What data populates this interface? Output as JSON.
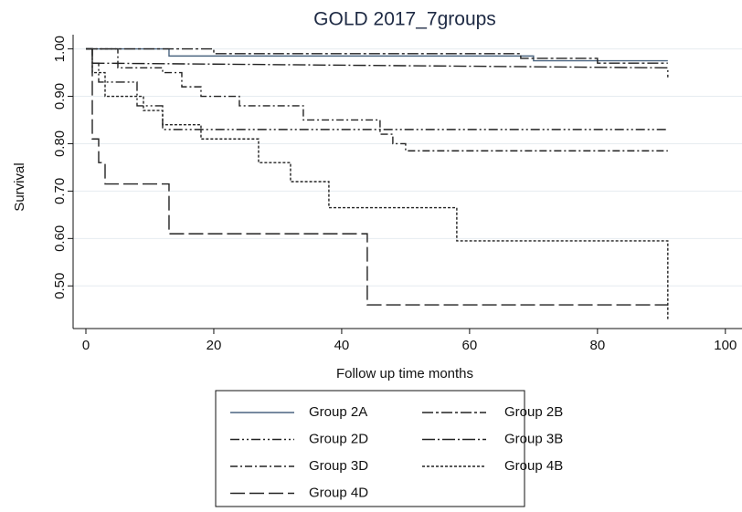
{
  "chart_data": {
    "type": "line",
    "title": "GOLD 2017_7groups",
    "x_label": "Follow up time months",
    "y_label": "Survival",
    "xlim": [
      -2,
      102.6
    ],
    "ylim": [
      0.41,
      1.03
    ],
    "xticks": [
      0,
      20,
      40,
      60,
      80,
      100
    ],
    "yticks": [
      {
        "value": 0.5,
        "label": "0.50"
      },
      {
        "value": 0.6,
        "label": "0.60"
      },
      {
        "value": 0.7,
        "label": "0.70"
      },
      {
        "value": 0.8,
        "label": "0.80"
      },
      {
        "value": 0.9,
        "label": "0.90"
      },
      {
        "value": 1,
        "label": "1.00"
      }
    ],
    "grid": true,
    "series": [
      {
        "name": "Group 2A",
        "color": "#4a6480",
        "dash": "none",
        "x": [
          0,
          13,
          13,
          70,
          70,
          91
        ],
        "values": [
          1,
          1,
          0.985,
          0.985,
          0.975,
          0.975
        ]
      },
      {
        "name": "Group 2B",
        "color": "#222222",
        "dash": "12,3,3,3",
        "x": [
          0,
          20,
          20,
          68,
          68,
          80,
          80,
          91
        ],
        "values": [
          1,
          1,
          0.99,
          0.99,
          0.98,
          0.98,
          0.97,
          0.97
        ]
      },
      {
        "name": "Group 2D",
        "color": "#222222",
        "dash": "10,3,2,3,2,3",
        "x": [
          0,
          1,
          1,
          2,
          2,
          8,
          8,
          12,
          12,
          91
        ],
        "values": [
          1,
          1,
          0.97,
          0.97,
          0.93,
          0.93,
          0.88,
          0.88,
          0.83,
          0.83
        ]
      },
      {
        "name": "Group 3B",
        "color": "#222222",
        "dash": "14,3,2,3",
        "x": [
          0,
          1,
          1,
          91,
          91
        ],
        "values": [
          1,
          1,
          0.97,
          0.96,
          0.94
        ]
      },
      {
        "name": "Group 3D",
        "color": "#222222",
        "dash": "8,3,2,3",
        "x": [
          0,
          5,
          5,
          12,
          12,
          15,
          15,
          18,
          18,
          24,
          24,
          34,
          34,
          46,
          46,
          48,
          48,
          50,
          50,
          91
        ],
        "values": [
          1,
          1,
          0.96,
          0.96,
          0.95,
          0.95,
          0.92,
          0.92,
          0.9,
          0.9,
          0.88,
          0.88,
          0.85,
          0.85,
          0.82,
          0.82,
          0.8,
          0.8,
          0.785,
          0.785
        ]
      },
      {
        "name": "Group 4B",
        "color": "#222222",
        "dash": "3,2",
        "x": [
          0,
          1,
          1,
          3,
          3,
          9,
          9,
          12,
          12,
          18,
          18,
          27,
          27,
          32,
          32,
          38,
          38,
          58,
          58,
          91,
          91
        ],
        "values": [
          1,
          1,
          0.95,
          0.95,
          0.9,
          0.9,
          0.87,
          0.87,
          0.84,
          0.84,
          0.81,
          0.81,
          0.76,
          0.76,
          0.72,
          0.72,
          0.665,
          0.665,
          0.595,
          0.595,
          0.43
        ]
      },
      {
        "name": "Group 4D",
        "color": "#222222",
        "dash": "16,5",
        "x": [
          0,
          1,
          1,
          2,
          2,
          3,
          3,
          13,
          13,
          44,
          44,
          91
        ],
        "values": [
          1,
          1,
          0.81,
          0.81,
          0.76,
          0.76,
          0.715,
          0.715,
          0.61,
          0.61,
          0.46,
          0.46
        ]
      }
    ]
  }
}
